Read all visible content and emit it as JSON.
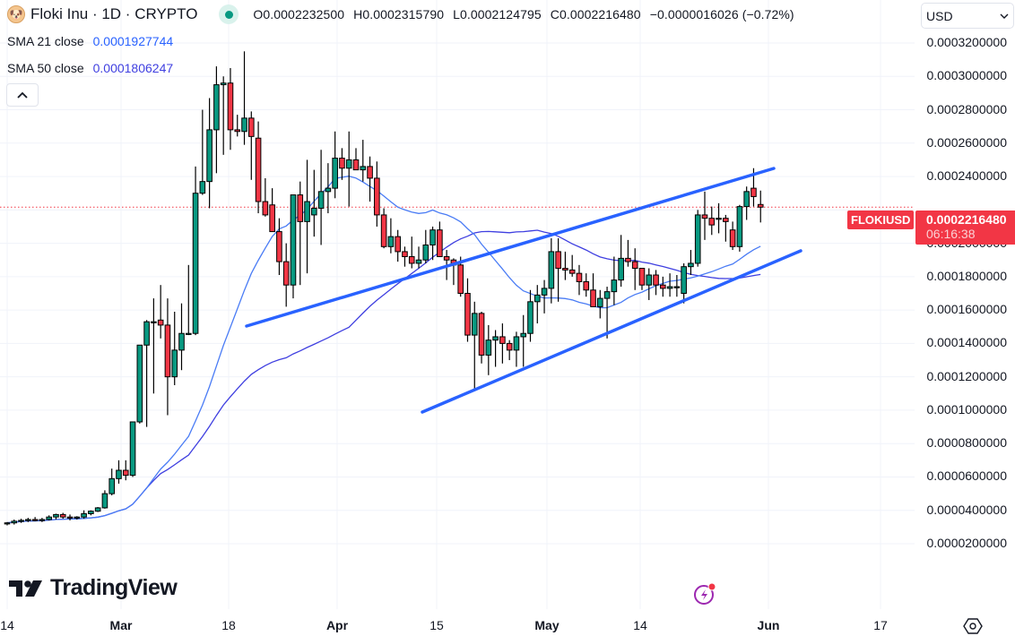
{
  "header": {
    "symbol_icon": "floki-dog-avatar-icon",
    "title": "Floki Inu · 1D · CRYPTO",
    "market_status": "open",
    "ohlc": {
      "open": "O0.0002232500",
      "high": "H0.0002315790",
      "low": "L0.0002124795",
      "close": "C0.0002216480",
      "change": "−0.0000016026 (−0.72%)"
    }
  },
  "indicators": [
    {
      "label": "SMA 21 close",
      "value": "0.0001927744",
      "color": "#2962ff"
    },
    {
      "label": "SMA 50 close",
      "value": "0.0001806247",
      "color": "#3f3fe0"
    }
  ],
  "collapse_button": "^",
  "currency": {
    "selected": "USD"
  },
  "price_axis": {
    "labels": [
      "0.0003200000",
      "0.0003000000",
      "0.0002800000",
      "0.0002600000",
      "0.0002400000",
      "0.0002000000",
      "0.0001800000",
      "0.0001600000",
      "0.0001400000",
      "0.0001200000",
      "0.0001000000",
      "0.0000800000",
      "0.0000600000",
      "0.0000400000",
      "0.0000200000"
    ]
  },
  "last_price": {
    "symbol": "FLOKIUSD",
    "value": "0.0002216480",
    "countdown": "06:16:38",
    "color": "#f23645"
  },
  "time_axis": {
    "labels": [
      {
        "text": "14",
        "x": 8,
        "bold": false
      },
      {
        "text": "Mar",
        "x": 135,
        "bold": true
      },
      {
        "text": "18",
        "x": 255,
        "bold": false
      },
      {
        "text": "Apr",
        "x": 376,
        "bold": true
      },
      {
        "text": "15",
        "x": 487,
        "bold": false
      },
      {
        "text": "May",
        "x": 610,
        "bold": true
      },
      {
        "text": "14",
        "x": 714,
        "bold": false
      },
      {
        "text": "Jun",
        "x": 857,
        "bold": true
      },
      {
        "text": "17",
        "x": 982,
        "bold": false
      }
    ]
  },
  "branding": {
    "logo_text": "TradingView"
  },
  "icons": {
    "settings": "settings-hexagon-icon",
    "flash": "lightning-flash-icon"
  },
  "colors": {
    "up": "#089981",
    "down": "#f23645",
    "trendline": "#2962ff",
    "sma21": "#4a7cf5",
    "sma50": "#3f3fe0",
    "grid": "#f0f3fa"
  },
  "chart_data": {
    "type": "candlestick",
    "title": "Floki Inu · 1D · CRYPTO",
    "symbol": "FLOKIUSD",
    "interval": "1D",
    "ylabel": "USD",
    "ylim": [
      1e-05,
      0.000325
    ],
    "x_range": [
      "2024-02-14",
      "2024-06-17"
    ],
    "grid": true,
    "candle_start_date": "2024-02-14",
    "candles": [
      [
        3.2e-05,
        3.3e-05,
        3.1e-05,
        3.25e-05
      ],
      [
        3.25e-05,
        3.45e-05,
        3.15e-05,
        3.35e-05
      ],
      [
        3.35e-05,
        3.5e-05,
        3.25e-05,
        3.4e-05
      ],
      [
        3.4e-05,
        3.55e-05,
        3.3e-05,
        3.45e-05
      ],
      [
        3.45e-05,
        3.6e-05,
        3.35e-05,
        3.4e-05
      ],
      [
        3.4e-05,
        3.55e-05,
        3.3e-05,
        3.45e-05
      ],
      [
        3.45e-05,
        3.7e-05,
        3.4e-05,
        3.6e-05
      ],
      [
        3.6e-05,
        3.8e-05,
        3.45e-05,
        3.75e-05
      ],
      [
        3.75e-05,
        3.85e-05,
        3.5e-05,
        3.6e-05
      ],
      [
        3.6e-05,
        3.75e-05,
        3.4e-05,
        3.55e-05
      ],
      [
        3.55e-05,
        3.65e-05,
        3.45e-05,
        3.6e-05
      ],
      [
        3.6e-05,
        4e-05,
        3.5e-05,
        3.8e-05
      ],
      [
        3.8e-05,
        4e-05,
        3.7e-05,
        3.95e-05
      ],
      [
        3.95e-05,
        4.2e-05,
        3.9e-05,
        4.15e-05
      ],
      [
        4.15e-05,
        5.2e-05,
        4.1e-05,
        5e-05
      ],
      [
        5e-05,
        6.5e-05,
        4.9e-05,
        5.9e-05
      ],
      [
        5.9e-05,
        7e-05,
        5.6e-05,
        6.4e-05
      ],
      [
        6.4e-05,
        7e-05,
        5.8e-05,
        6.1e-05
      ],
      [
        6.1e-05,
        8.6e-05,
        6e-05,
        9.3e-05
      ],
      [
        9.3e-05,
        0.000124,
        9.2e-05,
        0.000139
      ],
      [
        0.000139,
        0.000154,
        9e-05,
        0.000153
      ],
      [
        0.000153,
        0.000167,
        0.00011,
        0.000153
      ],
      [
        0.000154,
        0.000175,
        0.000143,
        0.000151
      ],
      [
        0.000151,
        0.000167,
        9.7e-05,
        0.00012
      ],
      [
        0.00012,
        0.000159,
        0.000115,
        0.000136
      ],
      [
        0.000136,
        0.000164,
        0.000124,
        0.000146
      ],
      [
        0.000146,
        0.000187,
        0.000145,
        0.000146
      ],
      [
        0.000146,
        0.000246,
        0.000145,
        0.00023
      ],
      [
        0.00023,
        0.00028,
        0.000229,
        0.000237
      ],
      [
        0.000237,
        0.000287,
        0.000221,
        0.000268
      ],
      [
        0.000268,
        0.000306,
        0.000242,
        0.000295
      ],
      [
        0.000295,
        0.0003,
        0.000253,
        0.000296
      ],
      [
        0.000296,
        0.000305,
        0.000256,
        0.000268
      ],
      [
        0.000268,
        0.000277,
        0.000264,
        0.000267
      ],
      [
        0.000267,
        0.000315,
        0.000259,
        0.000275
      ],
      [
        0.000275,
        0.000279,
        0.000238,
        0.000264
      ],
      [
        0.000263,
        0.000273,
        0.000218,
        0.000225
      ],
      [
        0.000225,
        0.000239,
        0.000216,
        0.000217
      ],
      [
        0.000223,
        0.000233,
        0.000207,
        0.000207
      ],
      [
        0.000207,
        0.000215,
        0.000181,
        0.000189
      ],
      [
        0.000189,
        0.0002,
        0.000162,
        0.000175
      ],
      [
        0.000175,
        0.000216,
        0.000167,
        0.000229
      ],
      [
        0.000229,
        0.000237,
        0.000175,
        0.000213
      ],
      [
        0.000213,
        0.00025,
        0.000182,
        0.000225
      ],
      [
        0.000217,
        0.000244,
        0.000204,
        0.000221
      ],
      [
        0.000221,
        0.000256,
        0.000199,
        0.000231
      ],
      [
        0.000231,
        0.000248,
        0.000218,
        0.000233
      ],
      [
        0.000233,
        0.000267,
        0.000227,
        0.000251
      ],
      [
        0.000251,
        0.000257,
        0.000238,
        0.000245
      ],
      [
        0.000245,
        0.000267,
        0.000222,
        0.00025
      ],
      [
        0.00025,
        0.000257,
        0.000246,
        0.000244
      ],
      [
        0.000244,
        0.000262,
        0.000237,
        0.000246
      ],
      [
        0.000246,
        0.000252,
        0.000225,
        0.000239
      ],
      [
        0.000239,
        0.000249,
        0.00021,
        0.000217
      ],
      [
        0.000217,
        0.000221,
        0.000197,
        0.000198
      ],
      [
        0.000198,
        0.000215,
        0.000194,
        0.000204
      ],
      [
        0.000204,
        0.000208,
        0.000189,
        0.000195
      ],
      [
        0.000195,
        0.000198,
        0.000186,
        0.000192
      ],
      [
        0.000192,
        0.000204,
        0.000185,
        0.000188
      ],
      [
        0.000188,
        0.000198,
        0.000185,
        0.00019
      ],
      [
        0.00019,
        0.000208,
        0.000188,
        0.000199
      ],
      [
        0.000199,
        0.00021,
        0.00019,
        0.000208
      ],
      [
        0.000208,
        0.000213,
        0.000195,
        0.000192
      ],
      [
        0.000192,
        0.000196,
        0.000178,
        0.00019
      ],
      [
        0.00019,
        0.000191,
        0.000175,
        0.000187
      ],
      [
        0.000187,
        0.000192,
        0.000168,
        0.00017
      ],
      [
        0.00017,
        0.000179,
        0.000141,
        0.000145
      ],
      [
        0.000145,
        0.000165,
        0.000112,
        0.000158
      ],
      [
        0.000158,
        0.000159,
        0.000128,
        0.000133
      ],
      [
        0.000133,
        0.000151,
        0.000121,
        0.000142
      ],
      [
        0.000142,
        0.000148,
        0.000126,
        0.000144
      ],
      [
        0.000144,
        0.000152,
        0.000128,
        0.00014
      ],
      [
        0.00014,
        0.000142,
        0.00013,
        0.000136
      ],
      [
        0.000136,
        0.000147,
        0.000126,
        0.000144
      ],
      [
        0.000144,
        0.000157,
        0.000126,
        0.000146
      ],
      [
        0.000146,
        0.000172,
        0.000141,
        0.000165
      ],
      [
        0.000165,
        0.000175,
        0.000152,
        0.000169
      ],
      [
        0.000169,
        0.000178,
        0.000158,
        0.000173
      ],
      [
        0.000173,
        0.000203,
        0.000164,
        0.000195
      ],
      [
        0.000195,
        0.000203,
        0.000165,
        0.000185
      ],
      [
        0.000185,
        0.000195,
        0.000178,
        0.000184
      ],
      [
        0.000184,
        0.000193,
        0.00018,
        0.000182
      ],
      [
        0.000182,
        0.000187,
        0.000169,
        0.000177
      ],
      [
        0.000177,
        0.000182,
        0.000168,
        0.000172
      ],
      [
        0.000172,
        0.000182,
        0.000163,
        0.000162
      ],
      [
        0.000162,
        0.000172,
        0.000155,
        0.000167
      ],
      [
        0.000167,
        0.000174,
        0.000143,
        0.000171
      ],
      [
        0.000171,
        0.000192,
        0.000163,
        0.000178
      ],
      [
        0.000178,
        0.000205,
        0.000174,
        0.000191
      ],
      [
        0.000191,
        0.000202,
        0.000186,
        0.000189
      ],
      [
        0.000189,
        0.000197,
        0.000172,
        0.000185
      ],
      [
        0.000185,
        0.000185,
        0.000172,
        0.000175
      ],
      [
        0.000175,
        0.000185,
        0.000166,
        0.000181
      ],
      [
        0.000181,
        0.000184,
        0.000169,
        0.000175
      ],
      [
        0.000175,
        0.00018,
        0.000168,
        0.000173
      ],
      [
        0.000173,
        0.000182,
        0.000168,
        0.000174
      ],
      [
        0.000174,
        0.000181,
        0.000168,
        0.000174
      ],
      [
        0.00017,
        0.000188,
        0.000164,
        0.000186
      ],
      [
        0.000186,
        0.000196,
        0.000181,
        0.000188
      ],
      [
        0.000188,
        0.00022,
        0.000186,
        0.000217
      ],
      [
        0.000217,
        0.000231,
        0.000202,
        0.000215
      ],
      [
        0.000215,
        0.000222,
        0.000205,
        0.000211
      ],
      [
        0.000215,
        0.000224,
        0.000206,
        0.000215
      ],
      [
        0.000215,
        0.000217,
        0.000201,
        0.000213
      ],
      [
        0.000208,
        0.000213,
        0.000196,
        0.000198
      ],
      [
        0.000198,
        0.000223,
        0.000195,
        0.000222
      ],
      [
        0.000222,
        0.000234,
        0.000214,
        0.000231
      ],
      [
        0.000233,
        0.000245,
        0.000222,
        0.000228
      ],
      [
        0.00022325,
        0.000231579,
        0.0002124795,
        0.000221648
      ]
    ],
    "sma21": {
      "label": "SMA 21 close",
      "last": 0.0001927744
    },
    "sma50": {
      "label": "SMA 50 close",
      "last": 0.0001806247
    },
    "trendlines": [
      {
        "name": "upper-channel",
        "from": [
          "2024-03-18",
          0.000162
        ],
        "to": [
          "2024-05-31",
          0.00025
        ]
      },
      {
        "name": "lower-channel",
        "from": [
          "2024-04-13",
          0.000113
        ],
        "to": [
          "2024-06-03",
          0.000203
        ]
      }
    ],
    "last_price_line": 0.000221648
  }
}
